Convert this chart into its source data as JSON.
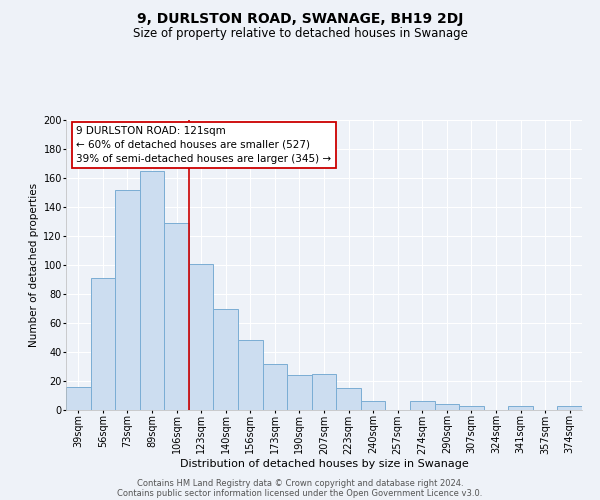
{
  "title": "9, DURLSTON ROAD, SWANAGE, BH19 2DJ",
  "subtitle": "Size of property relative to detached houses in Swanage",
  "xlabel": "Distribution of detached houses by size in Swanage",
  "ylabel": "Number of detached properties",
  "bar_labels": [
    "39sqm",
    "56sqm",
    "73sqm",
    "89sqm",
    "106sqm",
    "123sqm",
    "140sqm",
    "156sqm",
    "173sqm",
    "190sqm",
    "207sqm",
    "223sqm",
    "240sqm",
    "257sqm",
    "274sqm",
    "290sqm",
    "307sqm",
    "324sqm",
    "341sqm",
    "357sqm",
    "374sqm"
  ],
  "bar_values": [
    16,
    91,
    152,
    165,
    129,
    101,
    70,
    48,
    32,
    24,
    25,
    15,
    6,
    0,
    6,
    4,
    3,
    0,
    3,
    0,
    3
  ],
  "bar_color": "#ccddf0",
  "bar_edge_color": "#7aadd4",
  "vline_color": "#cc0000",
  "annotation_title": "9 DURLSTON ROAD: 121sqm",
  "annotation_line1": "← 60% of detached houses are smaller (527)",
  "annotation_line2": "39% of semi-detached houses are larger (345) →",
  "annotation_box_color": "#ffffff",
  "annotation_box_edge": "#cc0000",
  "ylim": [
    0,
    200
  ],
  "yticks": [
    0,
    20,
    40,
    60,
    80,
    100,
    120,
    140,
    160,
    180,
    200
  ],
  "footer1": "Contains HM Land Registry data © Crown copyright and database right 2024.",
  "footer2": "Contains public sector information licensed under the Open Government Licence v3.0.",
  "bg_color": "#eef2f8",
  "plot_bg_color": "#eef2f8",
  "grid_color": "#ffffff",
  "title_fontsize": 10,
  "subtitle_fontsize": 8.5,
  "xlabel_fontsize": 8,
  "ylabel_fontsize": 7.5,
  "tick_fontsize": 7,
  "footer_fontsize": 6,
  "annotation_fontsize": 7.5
}
